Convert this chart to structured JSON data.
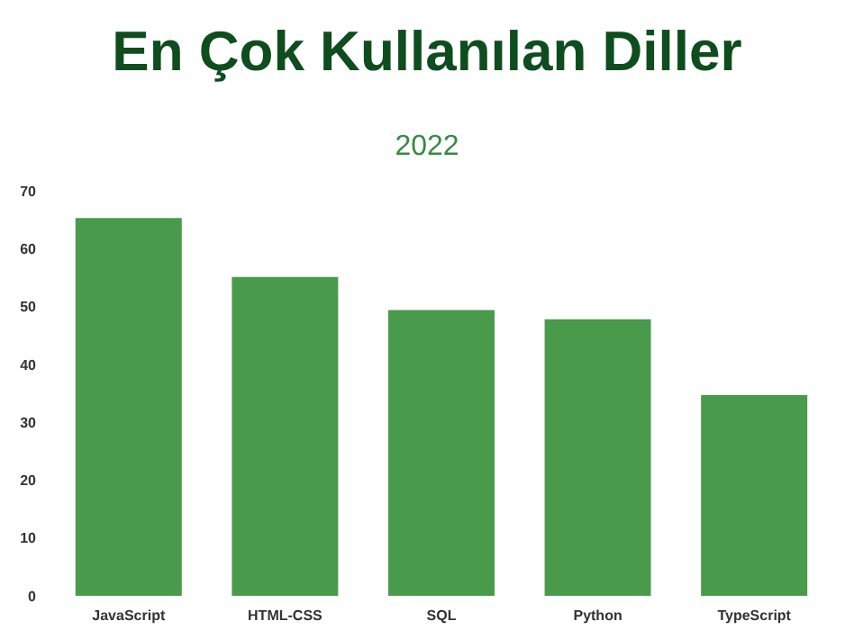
{
  "chart_data": {
    "type": "bar",
    "title": "En Çok Kullanılan Diller",
    "subtitle": "2022",
    "categories": [
      "JavaScript",
      "HTML-CSS",
      "SQL",
      "Python",
      "TypeScript"
    ],
    "values": [
      65.3,
      55.1,
      49.4,
      47.8,
      34.7
    ],
    "color": "#4a9a4c",
    "ylim": [
      0,
      70
    ],
    "yticks": [
      0,
      10,
      20,
      30,
      40,
      50,
      60,
      70
    ],
    "grid": false
  }
}
